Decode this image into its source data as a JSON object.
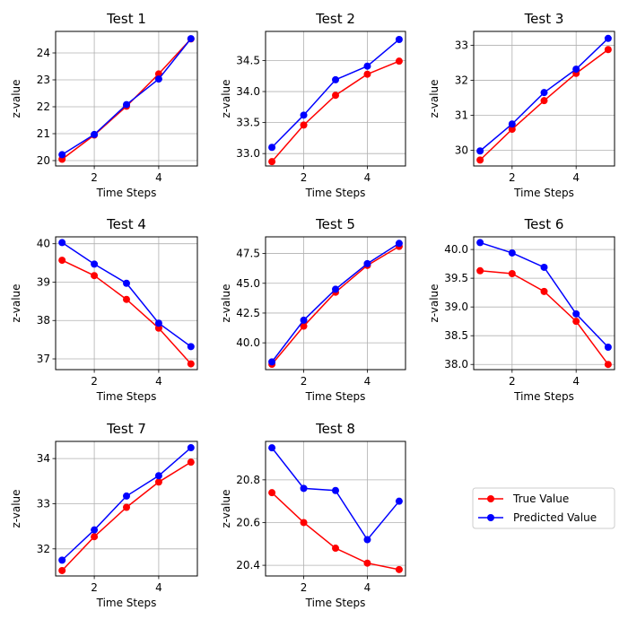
{
  "chart_data": [
    {
      "type": "line",
      "title": "Test 1",
      "xlabel": "Time Steps",
      "ylabel": "z-value",
      "x": [
        1,
        2,
        3,
        4,
        5
      ],
      "xticks": [
        2,
        4
      ],
      "xlim": [
        0.8,
        5.2
      ],
      "ylim": [
        19.8,
        24.8
      ],
      "yticks": [
        20,
        21,
        22,
        23,
        24
      ],
      "grid": true,
      "series": [
        {
          "name": "True Value",
          "color": "#ff0000",
          "values": [
            20.05,
            20.95,
            22.02,
            23.22,
            24.52
          ]
        },
        {
          "name": "Predicted Value",
          "color": "#0000ff",
          "values": [
            20.22,
            20.97,
            22.08,
            23.03,
            24.53
          ]
        }
      ]
    },
    {
      "type": "line",
      "title": "Test 2",
      "xlabel": "Time Steps",
      "ylabel": "z-value",
      "x": [
        1,
        2,
        3,
        4,
        5
      ],
      "xticks": [
        2,
        4
      ],
      "xlim": [
        0.8,
        5.2
      ],
      "ylim": [
        32.8,
        34.97
      ],
      "yticks": [
        33.0,
        33.5,
        34.0,
        34.5
      ],
      "ytick_decimals": 1,
      "grid": true,
      "series": [
        {
          "name": "True Value",
          "color": "#ff0000",
          "values": [
            32.87,
            33.46,
            33.94,
            34.28,
            34.49
          ]
        },
        {
          "name": "Predicted Value",
          "color": "#0000ff",
          "values": [
            33.1,
            33.62,
            34.19,
            34.41,
            34.84
          ]
        }
      ]
    },
    {
      "type": "line",
      "title": "Test 3",
      "xlabel": "Time Steps",
      "ylabel": "z-value",
      "x": [
        1,
        2,
        3,
        4,
        5
      ],
      "xticks": [
        2,
        4
      ],
      "xlim": [
        0.8,
        5.2
      ],
      "ylim": [
        29.55,
        33.4
      ],
      "yticks": [
        30,
        31,
        32,
        33
      ],
      "grid": true,
      "series": [
        {
          "name": "True Value",
          "color": "#ff0000",
          "values": [
            29.72,
            30.6,
            31.42,
            32.2,
            32.88
          ]
        },
        {
          "name": "Predicted Value",
          "color": "#0000ff",
          "values": [
            29.98,
            30.75,
            31.65,
            32.32,
            33.2
          ]
        }
      ]
    },
    {
      "type": "line",
      "title": "Test 4",
      "xlabel": "Time Steps",
      "ylabel": "z-value",
      "x": [
        1,
        2,
        3,
        4,
        5
      ],
      "xticks": [
        2,
        4
      ],
      "xlim": [
        0.8,
        5.2
      ],
      "ylim": [
        36.72,
        40.18
      ],
      "yticks": [
        37,
        38,
        39,
        40
      ],
      "grid": true,
      "series": [
        {
          "name": "True Value",
          "color": "#ff0000",
          "values": [
            39.57,
            39.17,
            38.55,
            37.8,
            36.87
          ]
        },
        {
          "name": "Predicted Value",
          "color": "#0000ff",
          "values": [
            40.03,
            39.47,
            38.97,
            37.93,
            37.32
          ]
        }
      ]
    },
    {
      "type": "line",
      "title": "Test 5",
      "xlabel": "Time Steps",
      "ylabel": "z-value",
      "x": [
        1,
        2,
        3,
        4,
        5
      ],
      "xticks": [
        2,
        4
      ],
      "xlim": [
        0.8,
        5.2
      ],
      "ylim": [
        37.75,
        48.9
      ],
      "yticks": [
        40.0,
        42.5,
        45.0,
        47.5
      ],
      "ytick_decimals": 1,
      "grid": true,
      "series": [
        {
          "name": "True Value",
          "color": "#ff0000",
          "values": [
            38.2,
            41.4,
            44.25,
            46.5,
            48.1
          ]
        },
        {
          "name": "Predicted Value",
          "color": "#0000ff",
          "values": [
            38.4,
            41.9,
            44.5,
            46.65,
            48.35
          ]
        }
      ]
    },
    {
      "type": "line",
      "title": "Test 6",
      "xlabel": "Time Steps",
      "ylabel": "z-value",
      "x": [
        1,
        2,
        3,
        4,
        5
      ],
      "xticks": [
        2,
        4
      ],
      "xlim": [
        0.8,
        5.2
      ],
      "ylim": [
        37.91,
        40.22
      ],
      "yticks": [
        38.0,
        38.5,
        39.0,
        39.5,
        40.0
      ],
      "ytick_decimals": 1,
      "grid": true,
      "series": [
        {
          "name": "True Value",
          "color": "#ff0000",
          "values": [
            39.63,
            39.58,
            39.27,
            38.75,
            38.0
          ]
        },
        {
          "name": "Predicted Value",
          "color": "#0000ff",
          "values": [
            40.12,
            39.94,
            39.69,
            38.88,
            38.3
          ]
        }
      ]
    },
    {
      "type": "line",
      "title": "Test 7",
      "xlabel": "Time Steps",
      "ylabel": "z-value",
      "x": [
        1,
        2,
        3,
        4,
        5
      ],
      "xticks": [
        2,
        4
      ],
      "xlim": [
        0.8,
        5.2
      ],
      "ylim": [
        31.4,
        34.38
      ],
      "yticks": [
        32,
        33,
        34
      ],
      "grid": true,
      "series": [
        {
          "name": "True Value",
          "color": "#ff0000",
          "values": [
            31.52,
            32.27,
            32.92,
            33.48,
            33.92
          ]
        },
        {
          "name": "Predicted Value",
          "color": "#0000ff",
          "values": [
            31.75,
            32.42,
            33.17,
            33.62,
            34.24
          ]
        }
      ]
    },
    {
      "type": "line",
      "title": "Test 8",
      "xlabel": "Time Steps",
      "ylabel": "z-value",
      "x": [
        1,
        2,
        3,
        4,
        5
      ],
      "xticks": [
        2,
        4
      ],
      "xlim": [
        0.8,
        5.2
      ],
      "ylim": [
        20.35,
        20.98
      ],
      "yticks": [
        20.4,
        20.6,
        20.8
      ],
      "ytick_decimals": 1,
      "grid": true,
      "series": [
        {
          "name": "True Value",
          "color": "#ff0000",
          "values": [
            20.74,
            20.6,
            20.48,
            20.41,
            20.38
          ]
        },
        {
          "name": "Predicted Value",
          "color": "#0000ff",
          "values": [
            20.95,
            20.76,
            20.75,
            20.52,
            20.7
          ]
        }
      ]
    }
  ],
  "legend": {
    "location": "lower-right",
    "entries": [
      {
        "label": "True Value",
        "color": "#ff0000"
      },
      {
        "label": "Predicted Value",
        "color": "#0000ff"
      }
    ]
  }
}
